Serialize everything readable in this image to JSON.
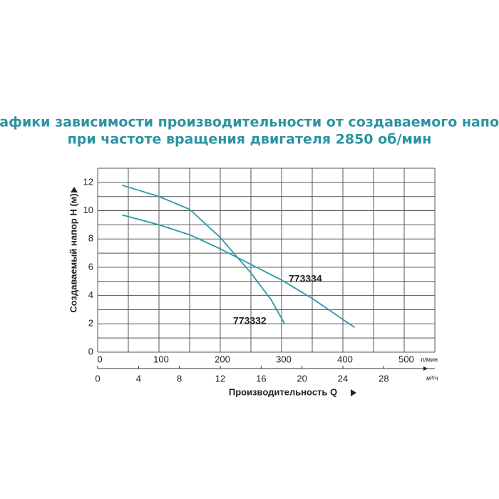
{
  "chart_data": {
    "type": "line",
    "title": [
      "Графики зависимости производительности от создаваемого напора",
      "при частоте вращения двигателя 2850 об/мин"
    ],
    "x_label": "Производительность Q",
    "y_label": "Создаваемый напор H (м)",
    "x_unit": "л/мин",
    "x2_unit": "м³/ч",
    "xlim": [
      0,
      550
    ],
    "xticks": [
      0,
      100,
      200,
      300,
      400,
      500
    ],
    "xgrid": [
      0,
      50,
      100,
      150,
      200,
      250,
      300,
      350,
      400,
      450,
      500,
      550
    ],
    "x2lim": [
      0,
      33
    ],
    "x2ticks": [
      0,
      4,
      8,
      12,
      16,
      20,
      24,
      28
    ],
    "ylim": [
      0,
      13
    ],
    "yticks": [
      0,
      2,
      4,
      6,
      8,
      10,
      12
    ],
    "ygrid": [
      0,
      1,
      2,
      3,
      4,
      5,
      6,
      7,
      8,
      9,
      10,
      11,
      12,
      13
    ],
    "grid": true,
    "series": [
      {
        "name": "773332",
        "color": "#2a9aa5",
        "x": [
          40,
          100,
          150,
          200,
          250,
          283,
          305
        ],
        "values": [
          11.8,
          11.0,
          10.1,
          8.1,
          5.6,
          3.7,
          2.0
        ]
      },
      {
        "name": "773334",
        "color": "#2a9aa5",
        "x": [
          40,
          100,
          150,
          200,
          250,
          300,
          350,
          419
        ],
        "values": [
          9.7,
          9.0,
          8.3,
          7.3,
          6.2,
          5.1,
          3.8,
          1.75
        ]
      }
    ]
  }
}
